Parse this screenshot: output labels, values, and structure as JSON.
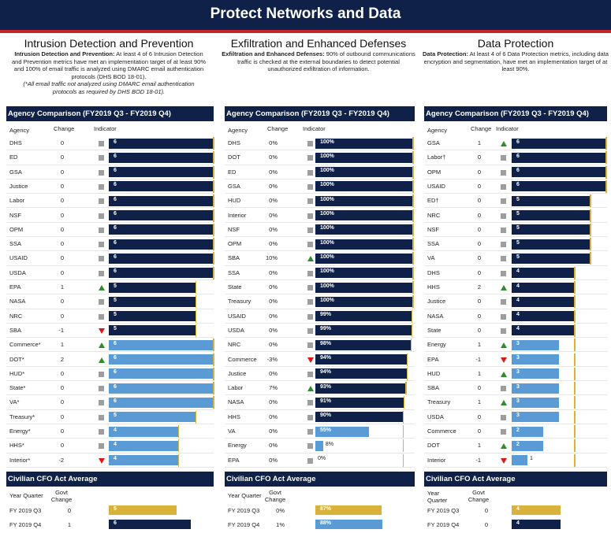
{
  "page_title": "Protect Networks and Data",
  "colors": {
    "navy": "#0f2148",
    "red": "#c1272d",
    "light_blue": "#5b9bd5",
    "gold": "#d8b23a",
    "grey": "#9e9e9e",
    "green": "#2e8b2e",
    "down_red": "#d9181e"
  },
  "headers": {
    "agency": "Agency",
    "change": "Change",
    "indicator": "Indicator",
    "year_quarter": "Year Quarter",
    "year": "Year",
    "quarter": "Quarter",
    "govt": "Govt",
    "change2": "Change"
  },
  "sections": [
    {
      "title": "Intrusion Detection and Prevention",
      "desc_bold": "Intrusion Detection and Prevention:",
      "desc_text": " At least 4 of 6 Intrusion Detection and Prevention metrics have met an implementation target of at least 90% and 100% of email traffic is analyzed using DMARC email authentication protocols (DHS BOD 18-01).",
      "note": "(*All email traffic not analyzed using DMARC email authentication protocols as required by DHS BOD 18-01).",
      "comparison_title": "Agency Comparison (FY2019 Q3 - FY2019 Q4)",
      "cfo_title": "Civilian CFO Act Average"
    },
    {
      "title": "Exfiltration and Enhanced Defenses",
      "desc_bold": "Exfiltration and Enhanced Defenses:",
      "desc_text": " 90% of outbound communications traffic is checked at the external boundaries to detect potential unauthorized exfiltration of information.",
      "note": "",
      "comparison_title": "Agency Comparison (FY2019 Q3 - FY2019 Q4)",
      "cfo_title": "Civilian CFO Act Average"
    },
    {
      "title": "Data Protection",
      "desc_bold": "Data Protection:",
      "desc_text": " At least 4 of 6 Data Protection metrics, including data encryption and segmentation, have met an implementation target of at least 90%.",
      "note": "",
      "comparison_title": "Agency Comparison (FY2019 Q3 - FY2019 Q4)",
      "cfo_title": "Civilian CFO Act Average"
    }
  ],
  "chart_data": [
    {
      "type": "bar",
      "title": "Intrusion Detection and Prevention - Agency Comparison (FY2019 Q3 - FY2019 Q4)",
      "xlim": [
        0,
        6
      ],
      "target": 4,
      "rows": [
        {
          "agency": "DHS",
          "change": "0",
          "dir": "none",
          "label": "6",
          "value": 6,
          "color": "navy"
        },
        {
          "agency": "ED",
          "change": "0",
          "dir": "none",
          "label": "6",
          "value": 6,
          "color": "navy"
        },
        {
          "agency": "GSA",
          "change": "0",
          "dir": "none",
          "label": "6",
          "value": 6,
          "color": "navy"
        },
        {
          "agency": "Justice",
          "change": "0",
          "dir": "none",
          "label": "6",
          "value": 6,
          "color": "navy"
        },
        {
          "agency": "Labor",
          "change": "0",
          "dir": "none",
          "label": "6",
          "value": 6,
          "color": "navy"
        },
        {
          "agency": "NSF",
          "change": "0",
          "dir": "none",
          "label": "6",
          "value": 6,
          "color": "navy"
        },
        {
          "agency": "OPM",
          "change": "0",
          "dir": "none",
          "label": "6",
          "value": 6,
          "color": "navy"
        },
        {
          "agency": "SSA",
          "change": "0",
          "dir": "none",
          "label": "6",
          "value": 6,
          "color": "navy"
        },
        {
          "agency": "USAID",
          "change": "0",
          "dir": "none",
          "label": "6",
          "value": 6,
          "color": "navy"
        },
        {
          "agency": "USDA",
          "change": "0",
          "dir": "none",
          "label": "6",
          "value": 6,
          "color": "navy"
        },
        {
          "agency": "EPA",
          "change": "1",
          "dir": "up",
          "label": "5",
          "value": 5,
          "color": "navy"
        },
        {
          "agency": "NASA",
          "change": "0",
          "dir": "none",
          "label": "5",
          "value": 5,
          "color": "navy"
        },
        {
          "agency": "NRC",
          "change": "0",
          "dir": "none",
          "label": "5",
          "value": 5,
          "color": "navy"
        },
        {
          "agency": "SBA",
          "change": "-1",
          "dir": "down",
          "label": "5",
          "value": 5,
          "color": "navy"
        },
        {
          "agency": "Commerce*",
          "change": "1",
          "dir": "up",
          "label": "6",
          "value": 6,
          "color": "light"
        },
        {
          "agency": "DOT*",
          "change": "2",
          "dir": "up",
          "label": "6",
          "value": 6,
          "color": "light"
        },
        {
          "agency": "HUD*",
          "change": "0",
          "dir": "none",
          "label": "6",
          "value": 6,
          "color": "light"
        },
        {
          "agency": "State*",
          "change": "0",
          "dir": "none",
          "label": "6",
          "value": 6,
          "color": "light"
        },
        {
          "agency": "VA*",
          "change": "0",
          "dir": "none",
          "label": "6",
          "value": 6,
          "color": "light"
        },
        {
          "agency": "Treasury*",
          "change": "0",
          "dir": "none",
          "label": "5",
          "value": 5,
          "color": "light"
        },
        {
          "agency": "Energy*",
          "change": "0",
          "dir": "none",
          "label": "4",
          "value": 4,
          "color": "light"
        },
        {
          "agency": "HHS*",
          "change": "0",
          "dir": "none",
          "label": "4",
          "value": 4,
          "color": "light"
        },
        {
          "agency": "Interior*",
          "change": "-2",
          "dir": "down",
          "label": "4",
          "value": 4,
          "color": "light"
        }
      ],
      "cfo": [
        {
          "quarter": "FY 2019 Q3",
          "change": "0",
          "label": "5",
          "value": 5,
          "color": "gold"
        },
        {
          "quarter": "FY 2019 Q4",
          "change": "1",
          "label": "6",
          "value": 6,
          "color": "navy"
        }
      ]
    },
    {
      "type": "bar",
      "title": "Exfiltration and Enhanced Defenses - Agency Comparison (FY2019 Q3 - FY2019 Q4)",
      "xlim": [
        0,
        100
      ],
      "target": 90,
      "rows": [
        {
          "agency": "DHS",
          "change": "0%",
          "dir": "none",
          "label": "100%",
          "value": 100,
          "color": "navy"
        },
        {
          "agency": "DOT",
          "change": "0%",
          "dir": "none",
          "label": "100%",
          "value": 100,
          "color": "navy"
        },
        {
          "agency": "ED",
          "change": "0%",
          "dir": "none",
          "label": "100%",
          "value": 100,
          "color": "navy"
        },
        {
          "agency": "GSA",
          "change": "0%",
          "dir": "none",
          "label": "100%",
          "value": 100,
          "color": "navy"
        },
        {
          "agency": "HUD",
          "change": "0%",
          "dir": "none",
          "label": "100%",
          "value": 100,
          "color": "navy"
        },
        {
          "agency": "Interior",
          "change": "0%",
          "dir": "none",
          "label": "100%",
          "value": 100,
          "color": "navy"
        },
        {
          "agency": "NSF",
          "change": "0%",
          "dir": "none",
          "label": "100%",
          "value": 100,
          "color": "navy"
        },
        {
          "agency": "OPM",
          "change": "0%",
          "dir": "none",
          "label": "100%",
          "value": 100,
          "color": "navy"
        },
        {
          "agency": "SBA",
          "change": "10%",
          "dir": "up",
          "label": "100%",
          "value": 100,
          "color": "navy"
        },
        {
          "agency": "SSA",
          "change": "0%",
          "dir": "none",
          "label": "100%",
          "value": 100,
          "color": "navy"
        },
        {
          "agency": "State",
          "change": "0%",
          "dir": "none",
          "label": "100%",
          "value": 100,
          "color": "navy"
        },
        {
          "agency": "Treasury",
          "change": "0%",
          "dir": "none",
          "label": "100%",
          "value": 100,
          "color": "navy"
        },
        {
          "agency": "USAID",
          "change": "0%",
          "dir": "none",
          "label": "99%",
          "value": 99,
          "color": "navy"
        },
        {
          "agency": "USDA",
          "change": "0%",
          "dir": "none",
          "label": "99%",
          "value": 99,
          "color": "navy"
        },
        {
          "agency": "NRC",
          "change": "0%",
          "dir": "none",
          "label": "98%",
          "value": 98,
          "color": "navy"
        },
        {
          "agency": "Commerce",
          "change": "-3%",
          "dir": "down",
          "label": "94%",
          "value": 94,
          "color": "navy"
        },
        {
          "agency": "Justice",
          "change": "0%",
          "dir": "none",
          "label": "94%",
          "value": 94,
          "color": "navy"
        },
        {
          "agency": "Labor",
          "change": "7%",
          "dir": "up",
          "label": "93%",
          "value": 93,
          "color": "navy"
        },
        {
          "agency": "NASA",
          "change": "0%",
          "dir": "none",
          "label": "91%",
          "value": 91,
          "color": "navy"
        },
        {
          "agency": "HHS",
          "change": "0%",
          "dir": "none",
          "label": "90%",
          "value": 90,
          "color": "navy"
        },
        {
          "agency": "VA",
          "change": "0%",
          "dir": "none",
          "label": "55%",
          "value": 55,
          "color": "light"
        },
        {
          "agency": "Energy",
          "change": "0%",
          "dir": "none",
          "label": "8%",
          "value": 8,
          "color": "light"
        },
        {
          "agency": "EPA",
          "change": "0%",
          "dir": "none",
          "label": "0%",
          "value": 0,
          "color": "light"
        }
      ],
      "cfo": [
        {
          "quarter": "FY 2019 Q3",
          "change": "0%",
          "label": "87%",
          "value": 87,
          "color": "gold"
        },
        {
          "quarter": "FY 2019 Q4",
          "change": "1%",
          "label": "88%",
          "value": 88,
          "color": "light"
        }
      ]
    },
    {
      "type": "bar",
      "title": "Data Protection - Agency Comparison (FY2019 Q3 - FY2019 Q4)",
      "xlim": [
        0,
        6
      ],
      "target": 4,
      "rows": [
        {
          "agency": "GSA",
          "change": "1",
          "dir": "up",
          "label": "6",
          "value": 6,
          "color": "navy"
        },
        {
          "agency": "Labor†",
          "change": "0",
          "dir": "none",
          "label": "6",
          "value": 6,
          "color": "navy"
        },
        {
          "agency": "OPM",
          "change": "0",
          "dir": "none",
          "label": "6",
          "value": 6,
          "color": "navy"
        },
        {
          "agency": "USAID",
          "change": "0",
          "dir": "none",
          "label": "6",
          "value": 6,
          "color": "navy"
        },
        {
          "agency": "ED†",
          "change": "0",
          "dir": "none",
          "label": "5",
          "value": 5,
          "color": "navy"
        },
        {
          "agency": "NRC",
          "change": "0",
          "dir": "none",
          "label": "5",
          "value": 5,
          "color": "navy"
        },
        {
          "agency": "NSF",
          "change": "0",
          "dir": "none",
          "label": "5",
          "value": 5,
          "color": "navy"
        },
        {
          "agency": "SSA",
          "change": "0",
          "dir": "none",
          "label": "5",
          "value": 5,
          "color": "navy"
        },
        {
          "agency": "VA",
          "change": "0",
          "dir": "none",
          "label": "5",
          "value": 5,
          "color": "navy"
        },
        {
          "agency": "DHS",
          "change": "0",
          "dir": "none",
          "label": "4",
          "value": 4,
          "color": "navy"
        },
        {
          "agency": "HHS",
          "change": "2",
          "dir": "up",
          "label": "4",
          "value": 4,
          "color": "navy"
        },
        {
          "agency": "Justice",
          "change": "0",
          "dir": "none",
          "label": "4",
          "value": 4,
          "color": "navy"
        },
        {
          "agency": "NASA",
          "change": "0",
          "dir": "none",
          "label": "4",
          "value": 4,
          "color": "navy"
        },
        {
          "agency": "State",
          "change": "0",
          "dir": "none",
          "label": "4",
          "value": 4,
          "color": "navy"
        },
        {
          "agency": "Energy",
          "change": "1",
          "dir": "up",
          "label": "3",
          "value": 3,
          "color": "light"
        },
        {
          "agency": "EPA",
          "change": "-1",
          "dir": "down",
          "label": "3",
          "value": 3,
          "color": "light"
        },
        {
          "agency": "HUD",
          "change": "1",
          "dir": "up",
          "label": "3",
          "value": 3,
          "color": "light"
        },
        {
          "agency": "SBA",
          "change": "0",
          "dir": "none",
          "label": "3",
          "value": 3,
          "color": "light"
        },
        {
          "agency": "Treasury",
          "change": "1",
          "dir": "up",
          "label": "3",
          "value": 3,
          "color": "light"
        },
        {
          "agency": "USDA",
          "change": "0",
          "dir": "none",
          "label": "3",
          "value": 3,
          "color": "light"
        },
        {
          "agency": "Commerce",
          "change": "0",
          "dir": "none",
          "label": "2",
          "value": 2,
          "color": "light"
        },
        {
          "agency": "DOT",
          "change": "1",
          "dir": "up",
          "label": "2",
          "value": 2,
          "color": "light"
        },
        {
          "agency": "Interior",
          "change": "-1",
          "dir": "down",
          "label": "1",
          "value": 1,
          "color": "light"
        }
      ],
      "cfo": [
        {
          "quarter": "FY 2019 Q3",
          "change": "0",
          "label": "4",
          "value": 4,
          "color": "gold"
        },
        {
          "quarter": "FY 2019 Q4",
          "change": "0",
          "label": "4",
          "value": 4,
          "color": "navy"
        }
      ]
    }
  ]
}
